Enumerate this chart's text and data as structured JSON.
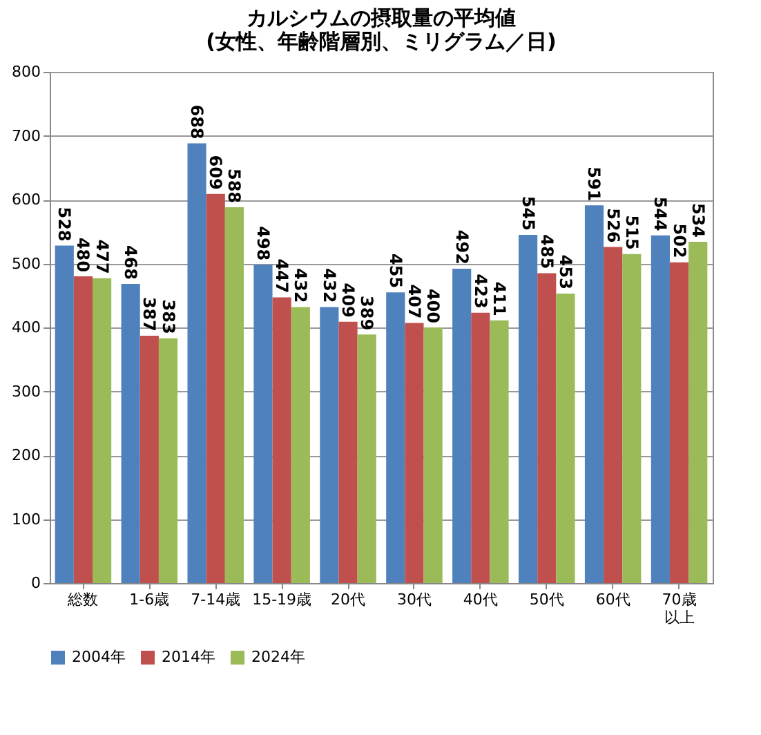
{
  "chart_data": {
    "type": "bar",
    "title": "カルシウムの摂取量の平均値\n(女性、年齢階層別、ミリグラム／日)",
    "categories": [
      "総数",
      "1-6歳",
      "7-14歳",
      "15-19歳",
      "20代",
      "30代",
      "40代",
      "50代",
      "60代",
      "70歳以上"
    ],
    "series": [
      {
        "name": "2004年",
        "color": "#4f81bd",
        "values": [
          528,
          468,
          688,
          498,
          432,
          455,
          492,
          545,
          591,
          544
        ]
      },
      {
        "name": "2014年",
        "color": "#c0504d",
        "values": [
          480,
          387,
          609,
          447,
          409,
          407,
          423,
          485,
          526,
          502
        ]
      },
      {
        "name": "2024年",
        "color": "#9bbb59",
        "values": [
          477,
          383,
          588,
          432,
          389,
          400,
          411,
          453,
          515,
          534
        ]
      }
    ],
    "ylim": [
      0,
      800
    ],
    "yticks": [
      0,
      100,
      200,
      300,
      400,
      500,
      600,
      700,
      800
    ],
    "grid": "y",
    "legend": "bottom",
    "data_labels": true
  }
}
